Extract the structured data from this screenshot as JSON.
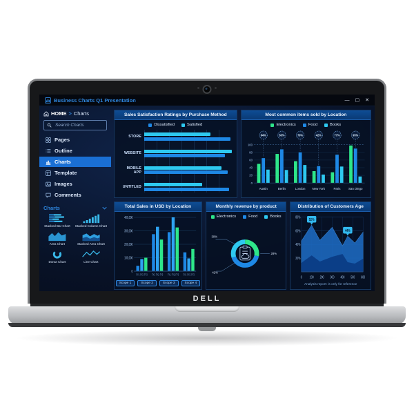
{
  "product": {
    "brand": "DELL"
  },
  "window": {
    "title": "Business Charts Q1 Presentation",
    "minimize": "—",
    "maximize": "▢",
    "close": "✕"
  },
  "sidebar": {
    "home": "HOME",
    "breadcrumb_sep": ">",
    "current": "Charts",
    "search_placeholder": "Search Charts",
    "menu": [
      {
        "label": "Pages",
        "icon": "pages-icon",
        "active": false
      },
      {
        "label": "Outline",
        "icon": "outline-icon",
        "active": false
      },
      {
        "label": "Charts",
        "icon": "charts-icon",
        "active": true
      },
      {
        "label": "Template",
        "icon": "template-icon",
        "active": false
      },
      {
        "label": "Images",
        "icon": "images-icon",
        "active": false
      },
      {
        "label": "Comments",
        "icon": "comments-icon",
        "active": false
      }
    ],
    "charts_title": "Charts",
    "thumbnails": [
      {
        "label": "Stacked Bar Chart",
        "icon": "stacked-bar-icon"
      },
      {
        "label": "Stacked Column Chart",
        "icon": "stacked-column-icon"
      },
      {
        "label": "Area Chart",
        "icon": "area-icon"
      },
      {
        "label": "Stacked Area Chart",
        "icon": "stacked-area-icon"
      },
      {
        "label": "Donut Chart",
        "icon": "donut-icon"
      },
      {
        "label": "Line Chart",
        "icon": "line-icon"
      }
    ]
  },
  "colors": {
    "blue": "#1e88e5",
    "cyan": "#2ec9f0",
    "green": "#2ee68a",
    "accent": "#2e86de"
  },
  "chart_data": [
    {
      "type": "bar",
      "orientation": "horizontal",
      "title": "Sales Satisfaction Ratings by Purchase Method",
      "legend": [
        {
          "name": "Dissatisfied",
          "color": "#1e88e5"
        },
        {
          "name": "Satisfied",
          "color": "#2ec9f0"
        }
      ],
      "categories": [
        "STORE",
        "WEBSITE",
        "MOBILE APP",
        "UNTITLED"
      ],
      "series": [
        {
          "name": "Satisfied",
          "color": "#2ec9f0",
          "values": [
            75,
            99,
            87,
            65
          ]
        },
        {
          "name": "Dissatisfied",
          "color": "#1e88e5",
          "values": [
            97,
            91,
            94,
            96
          ]
        }
      ],
      "xlim": [
        0,
        100
      ],
      "grid": true
    },
    {
      "type": "bar",
      "orientation": "vertical",
      "title": "Most common items sold by Location",
      "categories": [
        "Austin",
        "Berlin",
        "London",
        "New York",
        "Paris",
        "San Diego"
      ],
      "series": [
        {
          "name": "Electronics",
          "color": "#2ee68a",
          "values": [
            50,
            76,
            57,
            31,
            28,
            98
          ]
        },
        {
          "name": "Food",
          "color": "#1e88e5",
          "values": [
            65,
            88,
            80,
            44,
            74,
            90
          ]
        },
        {
          "name": "Books",
          "color": "#2ec9f0",
          "values": [
            35,
            34,
            47,
            22,
            43,
            17
          ]
        }
      ],
      "badges": [
        "64%",
        "50%",
        "79%",
        "42%",
        "77%",
        "95%"
      ],
      "yticks": [
        0,
        20,
        40,
        60,
        80,
        100
      ],
      "ylim": [
        0,
        100
      ],
      "grid": true
    },
    {
      "type": "bar",
      "orientation": "vertical",
      "title": "Total Sales in USD by Location",
      "categories": [
        "Scope 1",
        "Scope 2",
        "Scope 3",
        "Scope 4"
      ],
      "bar_labels": [
        "FY1",
        "FY2",
        "FY3"
      ],
      "series": [
        {
          "name": "FY1",
          "color": "#1e88e5",
          "values": [
            40000,
            275000,
            290000,
            140000
          ]
        },
        {
          "name": "FY2",
          "color": "#2ea3f2",
          "values": [
            90000,
            330000,
            400000,
            95000
          ]
        },
        {
          "name": "FY3",
          "color": "#2ee68a",
          "values": [
            100000,
            235000,
            325000,
            165000
          ]
        }
      ],
      "yticks": [
        "0",
        "100,000",
        "200,000",
        "300,000",
        "400,000"
      ],
      "ylim": [
        0,
        400000
      ],
      "buttons": [
        "Scope 1",
        "Scope 2",
        "Scope 3",
        "Scope 4"
      ],
      "grid": true
    },
    {
      "type": "pie",
      "title": "Monthly revenue by product",
      "legend": [
        {
          "name": "Electronics",
          "color": "#2ee68a"
        },
        {
          "name": "Food",
          "color": "#1e88e5"
        },
        {
          "name": "Books",
          "color": "#2ec9f0"
        }
      ],
      "slices": [
        {
          "name": "Electronics",
          "value": 28,
          "color": "#2ee68a"
        },
        {
          "name": "Food",
          "value": 42,
          "color": "#1e88e5"
        },
        {
          "name": "Books",
          "value": 30,
          "color": "#2ec9f0"
        }
      ],
      "callouts": {
        "top_left": "30%",
        "right": "28%",
        "bottom_left": "42%"
      }
    },
    {
      "type": "area",
      "title": "Distribution of Customers Age",
      "x": [
        0,
        100,
        180,
        300,
        400,
        450,
        520,
        600
      ],
      "series": [
        {
          "name": "upper",
          "color": "#1d6ac2",
          "values": [
            45,
            68,
            46,
            65,
            38,
            52,
            42,
            58
          ]
        },
        {
          "name": "lower",
          "color": "#0b3c85",
          "values": [
            13,
            24,
            15,
            22,
            26,
            14,
            12,
            19
          ]
        }
      ],
      "yticks": [
        "20%",
        "40%",
        "60%",
        "80%"
      ],
      "xticks": [
        0,
        100,
        200,
        300,
        400,
        500,
        600
      ],
      "tooltips": [
        {
          "x": 100,
          "label": "52%"
        },
        {
          "x": 450,
          "label": "44%"
        }
      ],
      "ylim": [
        0,
        80
      ],
      "caption": "Analysis report: is only for reference",
      "grid": true
    }
  ]
}
